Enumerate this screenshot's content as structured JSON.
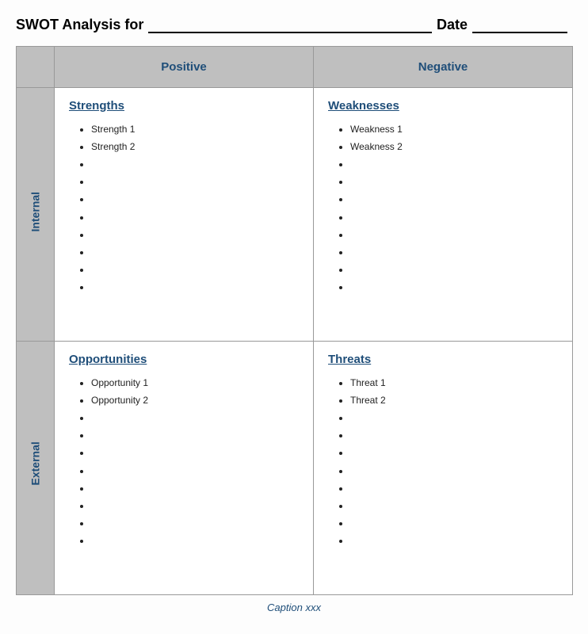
{
  "header": {
    "title_prefix": "SWOT Analysis for",
    "date_label": "Date"
  },
  "columns": {
    "positive": "Positive",
    "negative": "Negative"
  },
  "rows": {
    "internal": "Internal",
    "external": "External"
  },
  "quadrants": {
    "strengths": {
      "title": "Strengths",
      "items": [
        "Strength 1",
        "Strength 2",
        "",
        "",
        "",
        "",
        "",
        "",
        "",
        ""
      ]
    },
    "weaknesses": {
      "title": "Weaknesses",
      "items": [
        "Weakness 1",
        "Weakness 2",
        "",
        "",
        "",
        "",
        "",
        "",
        "",
        ""
      ]
    },
    "opportunities": {
      "title": "Opportunities",
      "items": [
        "Opportunity 1",
        "Opportunity 2",
        "",
        "",
        "",
        "",
        "",
        "",
        "",
        ""
      ]
    },
    "threats": {
      "title": "Threats",
      "items": [
        "Threat 1",
        "Threat 2",
        "",
        "",
        "",
        "",
        "",
        "",
        "",
        ""
      ]
    }
  },
  "caption": "Caption xxx",
  "style": {
    "header_bg": "#bfbfbf",
    "accent_color": "#1f4e79",
    "border_color": "#999999",
    "cell_bg": "#ffffff",
    "body_font_size": 12,
    "title_font_size": 15
  }
}
